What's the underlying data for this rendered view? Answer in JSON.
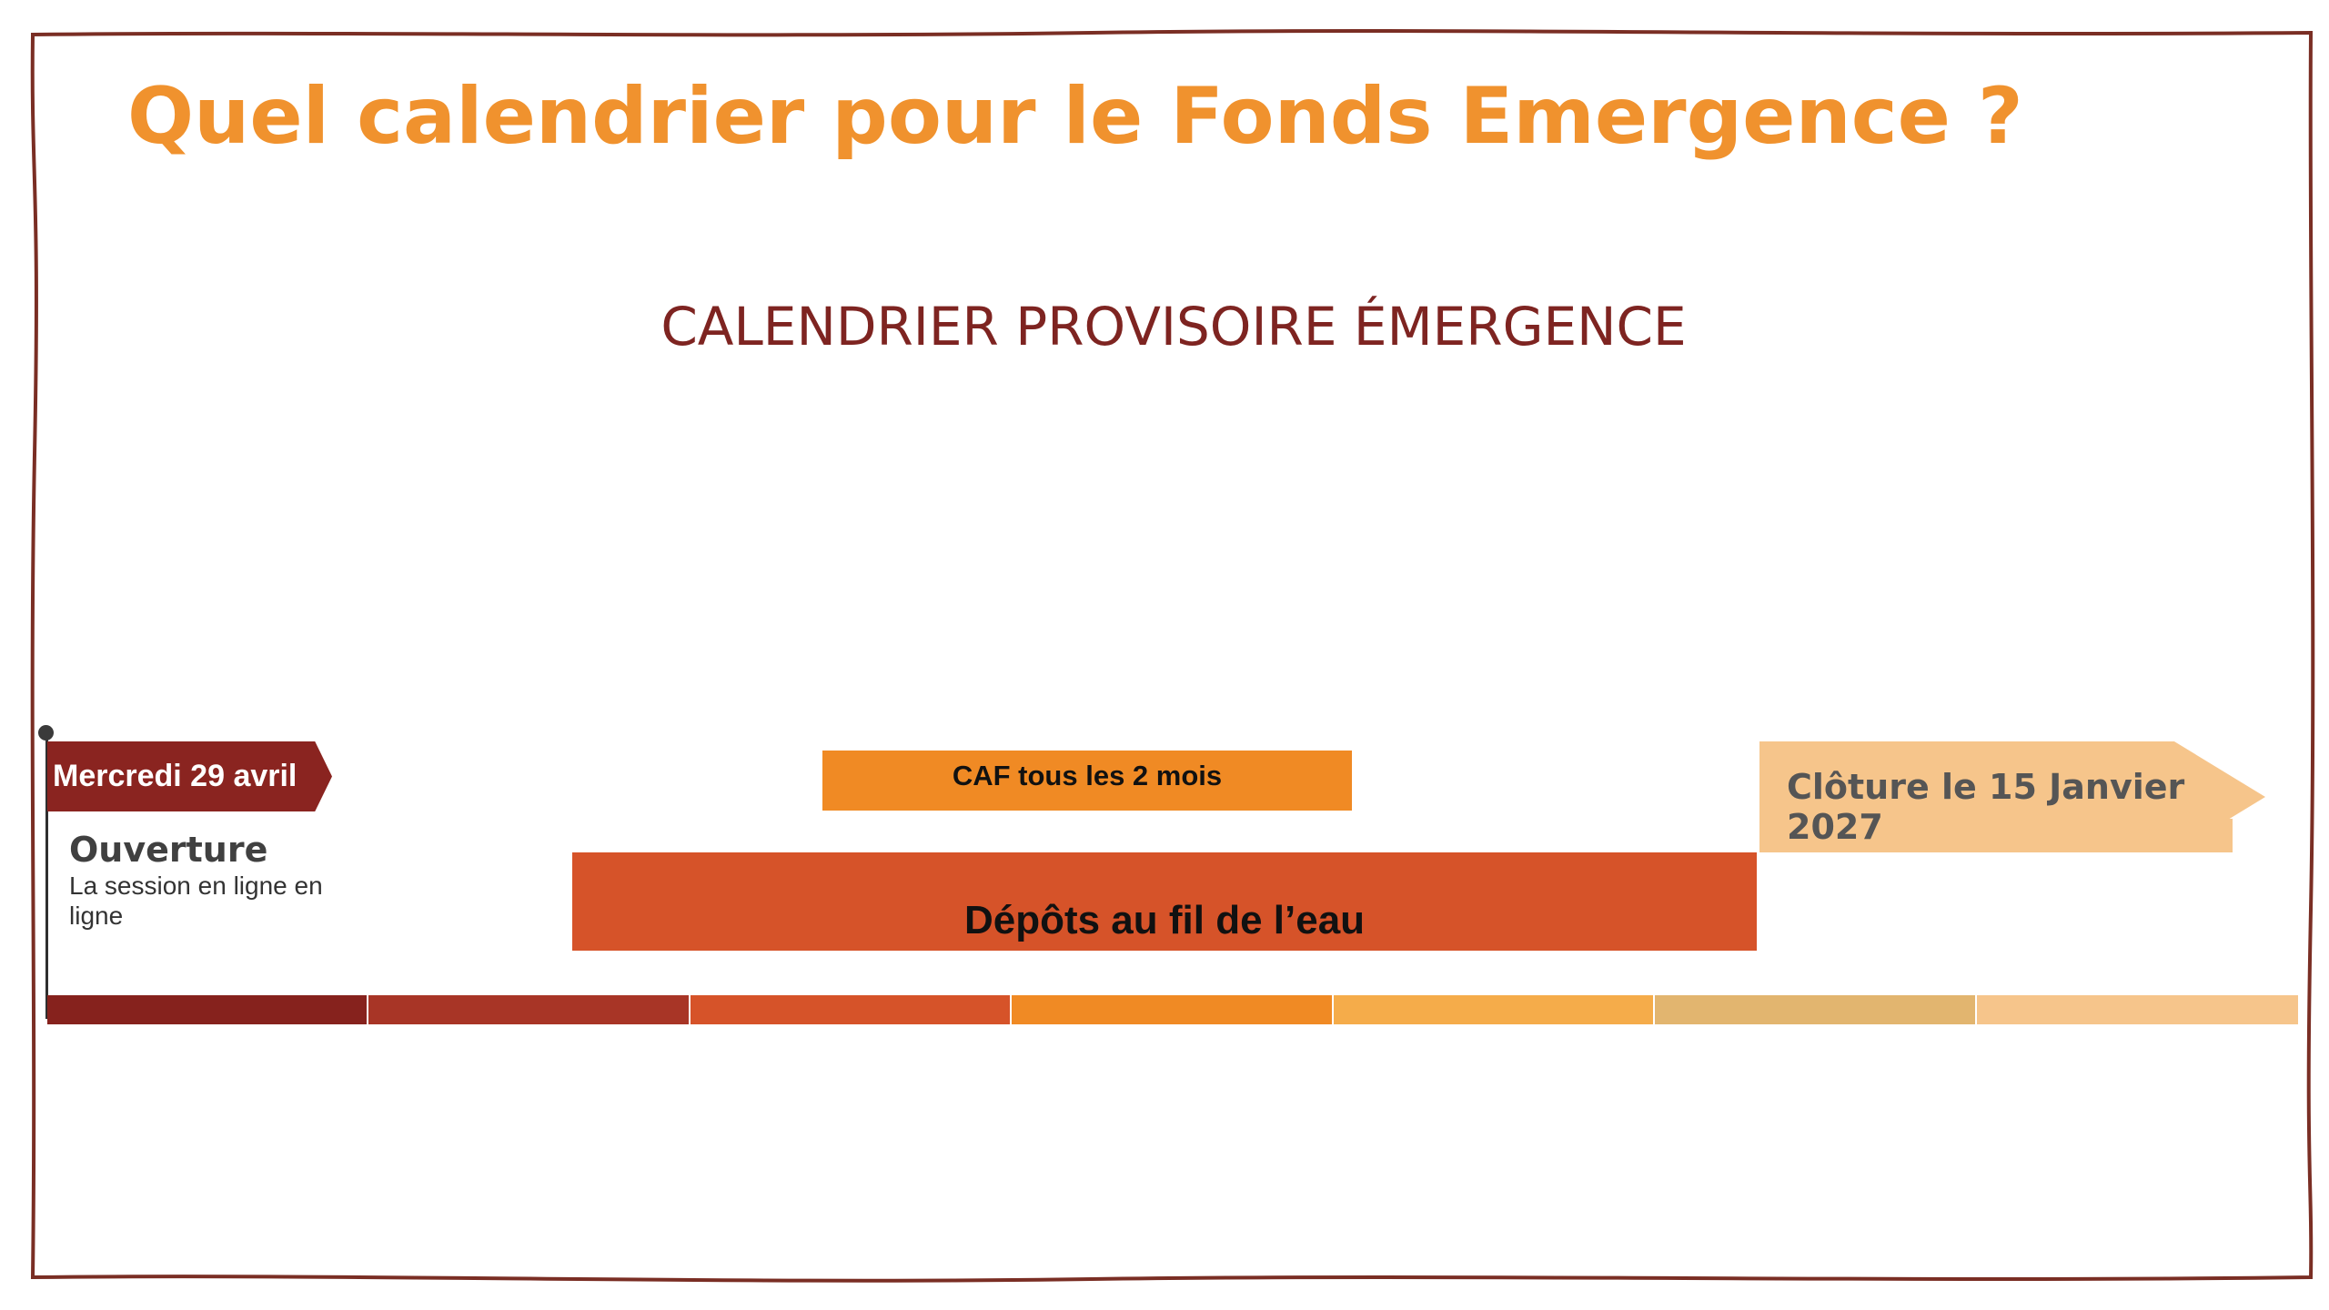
{
  "title": "Quel calendrier pour le Fonds Emergence ?",
  "subtitle": "CALENDRIER PROVISOIRE ÉMERGENCE",
  "start": {
    "date": "Mercredi 29 avril",
    "label": "Ouverture",
    "description": "La session en ligne en ligne"
  },
  "caf": {
    "label": "CAF tous les 2 mois"
  },
  "depots": {
    "label": "Dépôts au fil de l’eau"
  },
  "cloture": {
    "label": "Clôture le 15 Janvier 2027"
  },
  "timeline_colors": [
    "#86221d",
    "#a83526",
    "#d65329",
    "#f08a24",
    "#f5ac4a",
    "#e2b56f",
    "#f6c58b"
  ],
  "colors": {
    "title": "#f0922e",
    "subtitle": "#7e2421",
    "frame": "#7a2e24",
    "date_flag": "#8a2420",
    "caf": "#f08a24",
    "depots": "#d65329",
    "cloture": "#f6c58b"
  }
}
